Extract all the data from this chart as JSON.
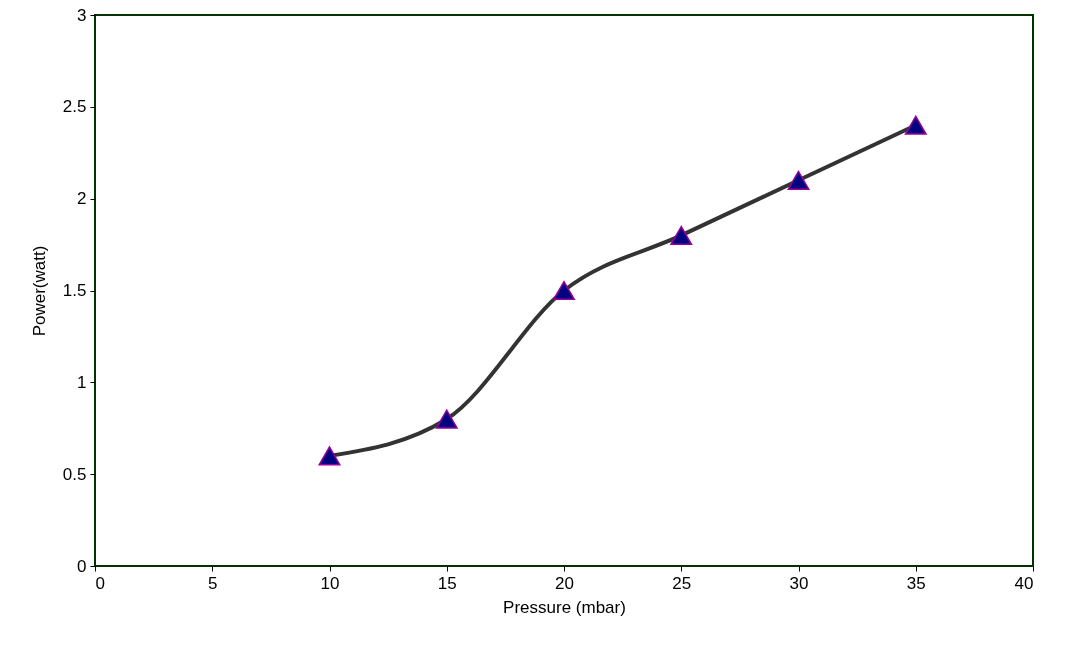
{
  "chart_data": {
    "type": "line",
    "xlabel": "Pressure (mbar)",
    "ylabel": "Power(watt)",
    "x": [
      10,
      15,
      20,
      25,
      30,
      35
    ],
    "series": [
      {
        "color": "#333333",
        "values": [
          0.6,
          0.8,
          1.5,
          1.8,
          2.1,
          2.4
        ]
      }
    ],
    "xlim": [
      0,
      40
    ],
    "xticks": [
      0,
      5,
      10,
      15,
      20,
      25,
      30,
      35,
      40
    ],
    "ylim": [
      0,
      3
    ],
    "yticks": [
      0,
      0.5,
      1,
      1.5,
      2,
      2.5,
      3
    ],
    "grid": false,
    "marker": "triangle",
    "line_style": "solid"
  }
}
